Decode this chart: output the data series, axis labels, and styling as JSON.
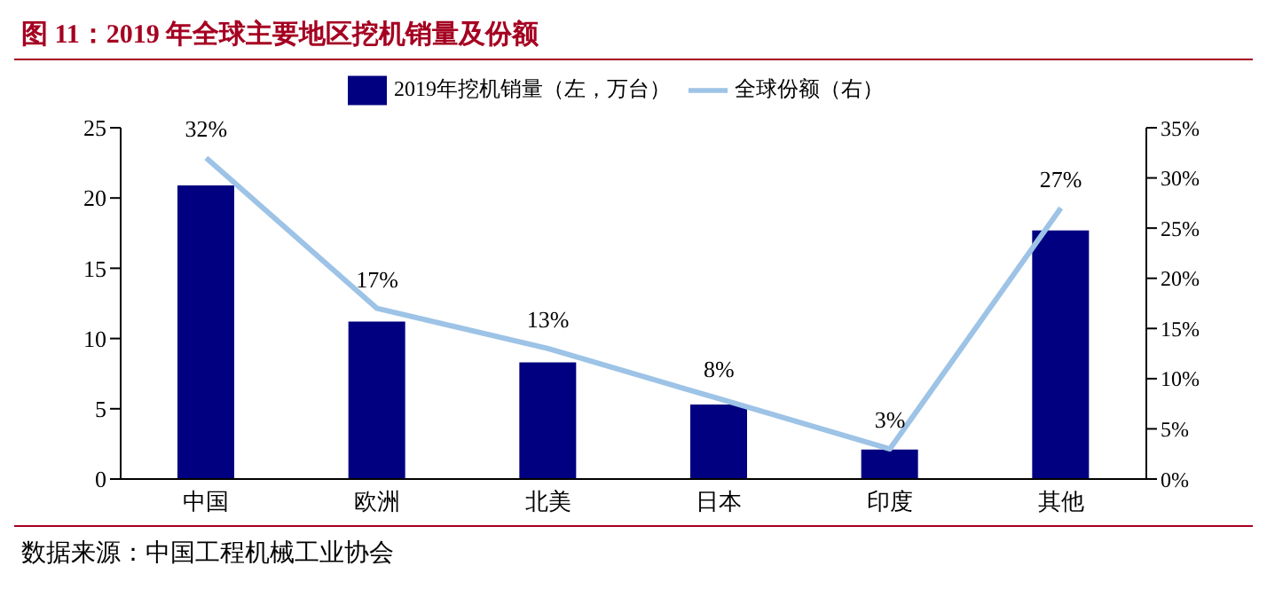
{
  "chart_data": {
    "type": "bar",
    "title": "图 11：2019 年全球主要地区挖机销量及份额",
    "categories": [
      "中国",
      "欧洲",
      "北美",
      "日本",
      "印度",
      "其他"
    ],
    "series": [
      {
        "name": "2019年挖机销量（左，万台）",
        "color": "#000080",
        "values": [
          20.9,
          11.2,
          8.3,
          5.3,
          2.1,
          17.7
        ]
      },
      {
        "name": "全球份额（右）",
        "type": "line",
        "axis": "y2",
        "color": "#9dc3e6",
        "values": [
          32,
          17,
          13,
          8,
          3,
          27
        ],
        "value_labels": [
          "32%",
          "17%",
          "13%",
          "8%",
          "3%",
          "27%"
        ]
      }
    ],
    "ylim": [
      0,
      25
    ],
    "yticks": [
      0,
      5,
      10,
      15,
      20,
      25
    ],
    "y2lim": [
      0,
      35
    ],
    "y2ticks": [
      {
        "value": 0,
        "label": "0%"
      },
      {
        "value": 5,
        "label": "5%"
      },
      {
        "value": 10,
        "label": "10%"
      },
      {
        "value": 15,
        "label": "15%"
      },
      {
        "value": 20,
        "label": "20%"
      },
      {
        "value": 25,
        "label": "25%"
      },
      {
        "value": 30,
        "label": "30%"
      },
      {
        "value": 35,
        "label": "35%"
      }
    ],
    "grid": false,
    "legend": "top",
    "marker": "none",
    "annotations": [
      "数据来源：中国工程机械工业协会"
    ]
  }
}
